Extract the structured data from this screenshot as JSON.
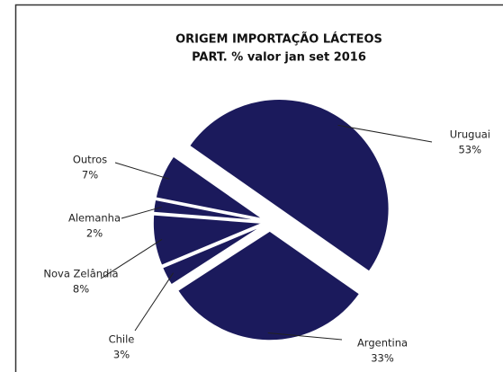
{
  "chart_data": {
    "type": "pie",
    "title": "ORIGEM IMPORTAÇÃO LÁCTEOS",
    "subtitle": "PART. % valor jan set 2016",
    "categories": [
      "Uruguai",
      "Argentina",
      "Chile",
      "Nova Zelândia",
      "Alemanha",
      "Outros"
    ],
    "values": [
      53,
      33,
      3,
      8,
      2,
      7
    ],
    "value_labels": [
      "53%",
      "33%",
      "3%",
      "8%",
      "2%",
      "7%"
    ],
    "color": "#1b1a5c"
  }
}
